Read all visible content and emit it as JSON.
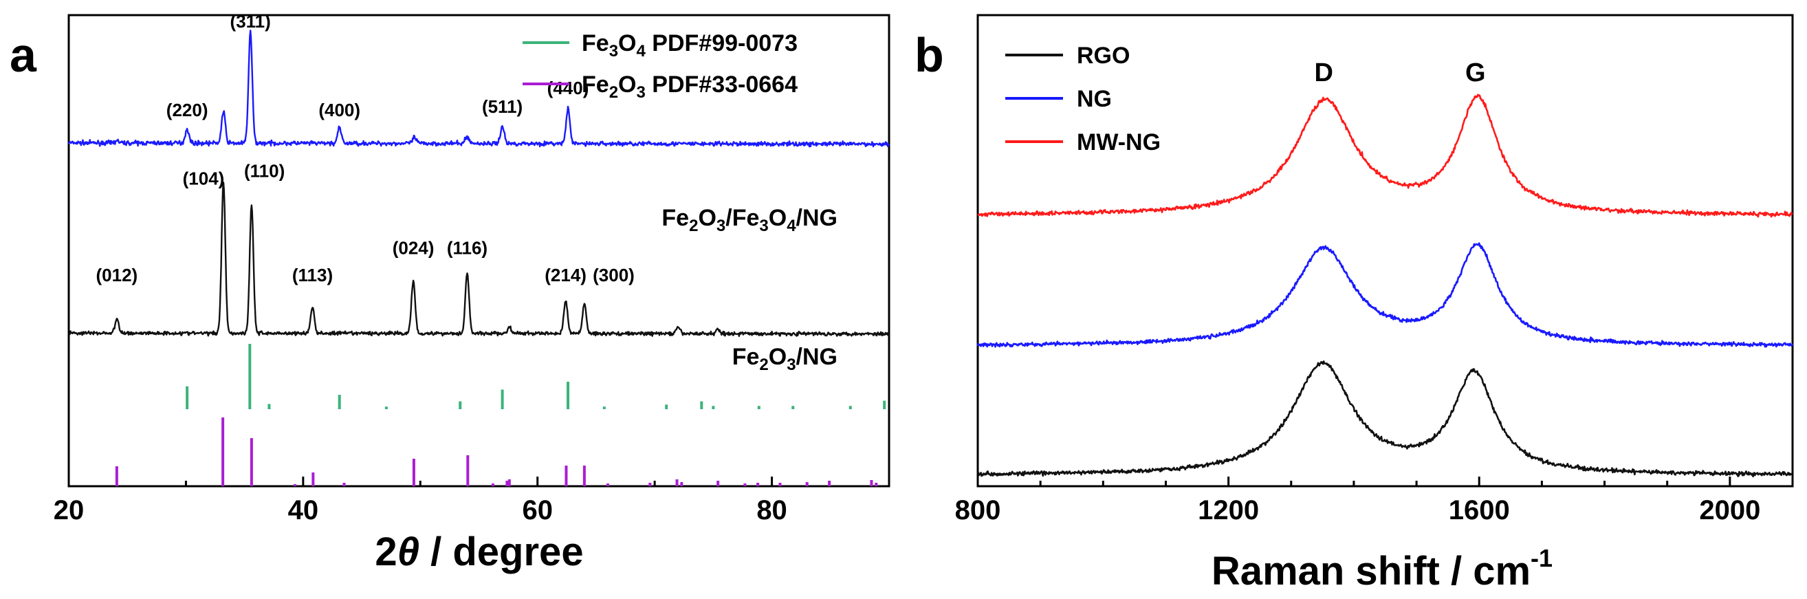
{
  "chart_data": [
    {
      "panel": "a",
      "type": "line",
      "xlabel_prefix": "2",
      "xlabel_symbol": "θ",
      "xlabel_suffix": " / degree",
      "ylabel": "",
      "xlim": [
        20,
        90
      ],
      "x_ticks": [
        "20",
        "40",
        "60",
        "80"
      ],
      "x_tick_values": [
        20,
        40,
        60,
        80
      ],
      "colors": {
        "fe3o4": "#1a1aff",
        "fe2o3": "#111111",
        "ref_fe3o4": "#3cb37a",
        "ref_fe2o3": "#aa1ed2"
      },
      "legend": [
        {
          "f1": "Fe",
          "s1": "3",
          "f2": "O",
          "s2": "4",
          "f3": " PDF#99-0073",
          "color": "#3cb37a"
        },
        {
          "f1": "Fe",
          "s1": "2",
          "f2": "O",
          "s2": "3",
          "f3": " PDF#33-0664",
          "color": "#aa1ed2"
        }
      ],
      "series": [
        {
          "name": "Fe2O3/Fe3O4/NG",
          "label_parts": {
            "a": "Fe",
            "b": "2",
            "c": "O",
            "d": "3",
            "e": "/Fe",
            "f": "3",
            "g": "O",
            "h": "4",
            "i": "/NG"
          },
          "color": "#1a1aff",
          "baseline_start": 0.06,
          "baseline_end": 0.05,
          "noise": 0.018,
          "peaks": [
            [
              24.1,
              0.02
            ],
            [
              30.1,
              0.12
            ],
            [
              33.2,
              0.27
            ],
            [
              35.5,
              0.95
            ],
            [
              43.1,
              0.13
            ],
            [
              49.5,
              0.05
            ],
            [
              54.0,
              0.06
            ],
            [
              57.0,
              0.15
            ],
            [
              62.6,
              0.3
            ]
          ],
          "miller_labels": [
            {
              "text": "(220)",
              "x": 30.1,
              "h": 0.24
            },
            {
              "text": "(311)",
              "x": 35.5,
              "h": 1.0
            },
            {
              "text": "(400)",
              "x": 43.1,
              "h": 0.24
            },
            {
              "text": "(511)",
              "x": 57.0,
              "h": 0.27
            },
            {
              "text": "(440)",
              "x": 62.6,
              "h": 0.43
            }
          ]
        },
        {
          "name": "Fe2O3/NG",
          "label_parts": {
            "a": "Fe",
            "b": "2",
            "c": "O",
            "d": "3",
            "e": "/NG"
          },
          "color": "#111111",
          "baseline_start": 0.035,
          "baseline_end": 0.03,
          "noise": 0.012,
          "peaks": [
            [
              24.1,
              0.09
            ],
            [
              33.2,
              1.0
            ],
            [
              35.6,
              0.85
            ],
            [
              40.8,
              0.17
            ],
            [
              49.4,
              0.35
            ],
            [
              54.0,
              0.4
            ],
            [
              57.6,
              0.04
            ],
            [
              62.4,
              0.22
            ],
            [
              64.0,
              0.2
            ],
            [
              72.0,
              0.04
            ],
            [
              75.4,
              0.03
            ]
          ],
          "miller_labels": [
            {
              "text": "(012)",
              "x": 24.1,
              "h": 0.34
            },
            {
              "text": "(104)",
              "x": 31.5,
              "h": 0.98
            },
            {
              "text": "(110)",
              "x": 36.7,
              "h": 1.03
            },
            {
              "text": "(113)",
              "x": 40.8,
              "h": 0.34
            },
            {
              "text": "(024)",
              "x": 49.4,
              "h": 0.52
            },
            {
              "text": "(116)",
              "x": 54.0,
              "h": 0.52
            },
            {
              "text": "(214)",
              "x": 62.4,
              "h": 0.34
            },
            {
              "text": "(300)",
              "x": 66.5,
              "h": 0.34
            }
          ]
        }
      ],
      "reference_fe3o4": [
        [
          30.1,
          0.35
        ],
        [
          35.45,
          1.0
        ],
        [
          37.1,
          0.08
        ],
        [
          43.1,
          0.22
        ],
        [
          47.1,
          0.04
        ],
        [
          53.4,
          0.12
        ],
        [
          57.0,
          0.3
        ],
        [
          62.6,
          0.42
        ],
        [
          65.7,
          0.04
        ],
        [
          71.0,
          0.07
        ],
        [
          74.0,
          0.12
        ],
        [
          75.0,
          0.05
        ],
        [
          78.9,
          0.05
        ],
        [
          81.8,
          0.05
        ],
        [
          86.7,
          0.05
        ],
        [
          89.6,
          0.13
        ]
      ],
      "reference_fe2o3": [
        [
          24.1,
          0.29
        ],
        [
          33.15,
          1.0
        ],
        [
          35.6,
          0.7
        ],
        [
          39.3,
          0.03
        ],
        [
          40.85,
          0.2
        ],
        [
          43.5,
          0.05
        ],
        [
          49.45,
          0.4
        ],
        [
          54.05,
          0.45
        ],
        [
          56.2,
          0.04
        ],
        [
          57.4,
          0.08
        ],
        [
          57.6,
          0.1
        ],
        [
          62.45,
          0.3
        ],
        [
          64.0,
          0.3
        ],
        [
          66.0,
          0.04
        ],
        [
          69.6,
          0.05
        ],
        [
          71.9,
          0.1
        ],
        [
          72.3,
          0.06
        ],
        [
          75.4,
          0.08
        ],
        [
          77.7,
          0.04
        ],
        [
          78.8,
          0.05
        ],
        [
          80.7,
          0.05
        ],
        [
          83.0,
          0.06
        ],
        [
          84.9,
          0.08
        ],
        [
          88.5,
          0.09
        ],
        [
          88.9,
          0.05
        ]
      ]
    },
    {
      "panel": "b",
      "type": "line",
      "xlabel_main": "Raman shift / cm",
      "xlabel_sup": "-1",
      "ylabel": "",
      "xlim": [
        800,
        2100
      ],
      "x_ticks": [
        "800",
        "1200",
        "1600",
        "2000"
      ],
      "x_tick_values": [
        800,
        1200,
        1600,
        2000
      ],
      "band_labels": [
        {
          "text": "D",
          "x": 1352
        },
        {
          "text": "G",
          "x": 1594
        }
      ],
      "legend": [
        "RGO",
        "NG",
        "MW-NG"
      ],
      "series": [
        {
          "name": "RGO",
          "color": "#111111",
          "D": [
            1350,
            1.0,
            115
          ],
          "G": [
            1592,
            0.9,
            80
          ],
          "base": 0.0,
          "noise": 0.018
        },
        {
          "name": "NG",
          "color": "#1a1aff",
          "D": [
            1352,
            0.93,
            115
          ],
          "G": [
            1597,
            0.94,
            78
          ],
          "base": 0.0,
          "noise": 0.018
        },
        {
          "name": "MW-NG",
          "color": "#ff1a1a",
          "D": [
            1354,
            1.0,
            115
          ],
          "G": [
            1598,
            1.0,
            78
          ],
          "base": 0.0,
          "noise": 0.018
        }
      ]
    }
  ]
}
